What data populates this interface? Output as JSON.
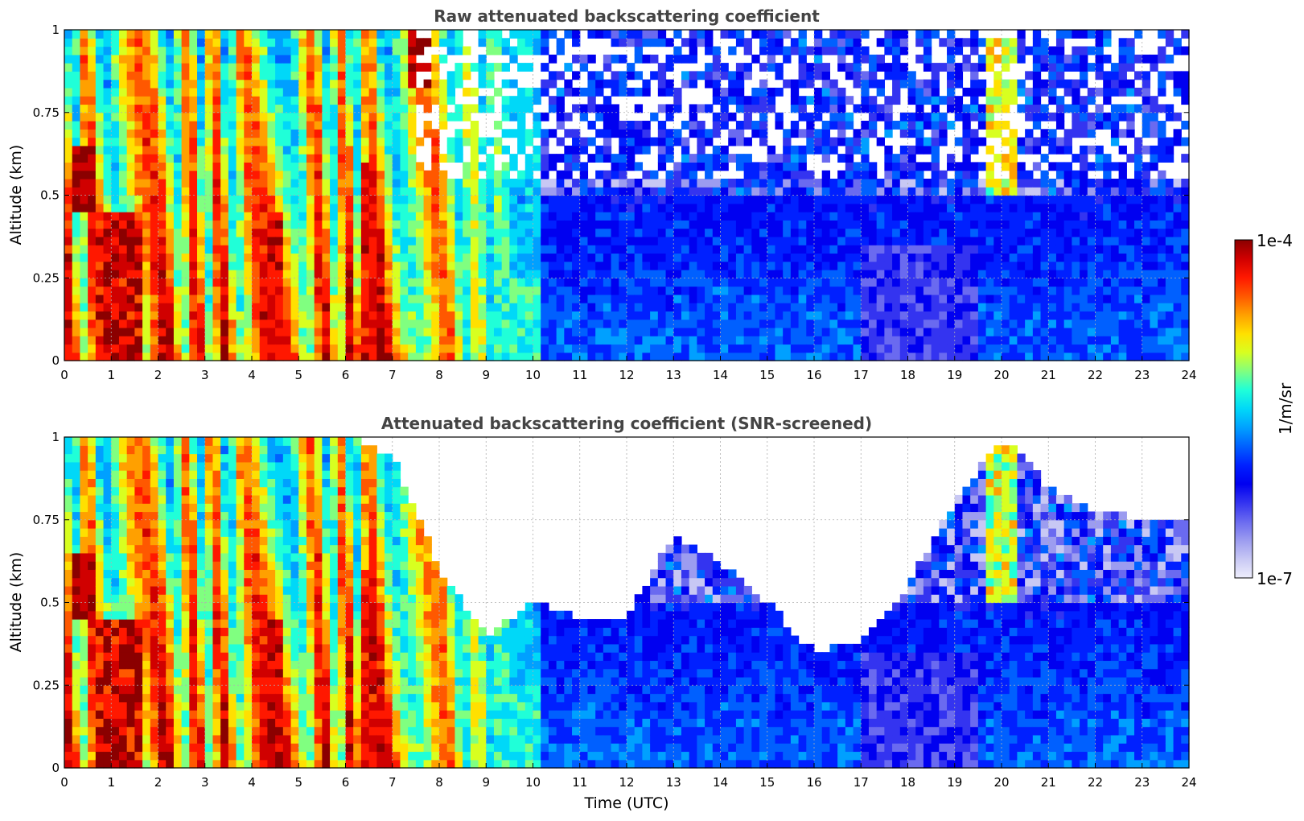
{
  "chart_data": [
    {
      "type": "heatmap",
      "title": "Raw attenuated backscattering coefficient",
      "xlabel": "",
      "ylabel": "Altitude (km)",
      "xlim": [
        0,
        24
      ],
      "ylim": [
        0,
        1
      ],
      "x_ticks": [
        "0",
        "1",
        "2",
        "3",
        "4",
        "5",
        "6",
        "7",
        "8",
        "9",
        "10",
        "11",
        "12",
        "13",
        "14",
        "15",
        "16",
        "17",
        "18",
        "19",
        "20",
        "21",
        "22",
        "23",
        "24"
      ],
      "y_ticks": [
        "0",
        "0.25",
        "0.5",
        "0.75",
        "1"
      ],
      "grid": true,
      "screened": false,
      "z_scale": "log",
      "z_range": [
        1e-07,
        0.0001
      ],
      "features": [
        {
          "time_range": [
            0.3,
            7.5
          ],
          "altitude_top": 1.0,
          "description_level": "high backscatter plumes (1e-5 to 1e-4)"
        },
        {
          "time_range": [
            7.3,
            7.9
          ],
          "altitude_range": [
            0.83,
            1.0
          ],
          "description_level": "1e-4"
        },
        {
          "time_range": [
            19.6,
            20.3
          ],
          "altitude_range": [
            0.5,
            1.0
          ],
          "description_level": "1e-6 to 1e-5"
        },
        {
          "time_range": [
            10,
            24
          ],
          "altitude_range": [
            0,
            0.5
          ],
          "description_level": "1e-7 to 1e-6"
        }
      ]
    },
    {
      "type": "heatmap",
      "title": "Attenuated backscattering coefficient (SNR-screened)",
      "xlabel": "Time (UTC)",
      "ylabel": "Altitude (km)",
      "xlim": [
        0,
        24
      ],
      "ylim": [
        0,
        1
      ],
      "x_ticks": [
        "0",
        "1",
        "2",
        "3",
        "4",
        "5",
        "6",
        "7",
        "8",
        "9",
        "10",
        "11",
        "12",
        "13",
        "14",
        "15",
        "16",
        "17",
        "18",
        "19",
        "20",
        "21",
        "22",
        "23",
        "24"
      ],
      "y_ticks": [
        "0",
        "0.25",
        "0.5",
        "0.75",
        "1"
      ],
      "grid": true,
      "screened": true,
      "z_scale": "log",
      "z_range": [
        1e-07,
        0.0001
      ],
      "screened_top_km": [
        [
          0,
          1.0
        ],
        [
          1,
          1.0
        ],
        [
          2,
          1.0
        ],
        [
          3,
          1.0
        ],
        [
          4,
          1.0
        ],
        [
          5,
          1.0
        ],
        [
          6,
          1.0
        ],
        [
          7,
          0.95
        ],
        [
          8,
          0.6
        ],
        [
          9,
          0.4
        ],
        [
          10,
          0.5
        ],
        [
          11,
          0.45
        ],
        [
          12,
          0.45
        ],
        [
          13,
          0.7
        ],
        [
          14,
          0.62
        ],
        [
          15,
          0.5
        ],
        [
          16,
          0.35
        ],
        [
          17,
          0.38
        ],
        [
          18,
          0.55
        ],
        [
          19,
          0.8
        ],
        [
          20,
          1.0
        ],
        [
          21,
          0.85
        ],
        [
          22,
          0.78
        ],
        [
          23,
          0.75
        ],
        [
          24,
          0.75
        ]
      ]
    }
  ],
  "colorbar": {
    "label": "1/m/sr",
    "max_label": "1e-4",
    "min_label": "1e-7",
    "colors": [
      "#eeeefc",
      "#c8c8f4",
      "#9c9cf0",
      "#6a6af0",
      "#3434f0",
      "#0000f0",
      "#0020ff",
      "#0060ff",
      "#00a0ff",
      "#00d8f8",
      "#20ffd8",
      "#80ff80",
      "#d8ff20",
      "#ffe000",
      "#ffa000",
      "#ff5800",
      "#ff1800",
      "#d00000",
      "#8b0000"
    ]
  }
}
